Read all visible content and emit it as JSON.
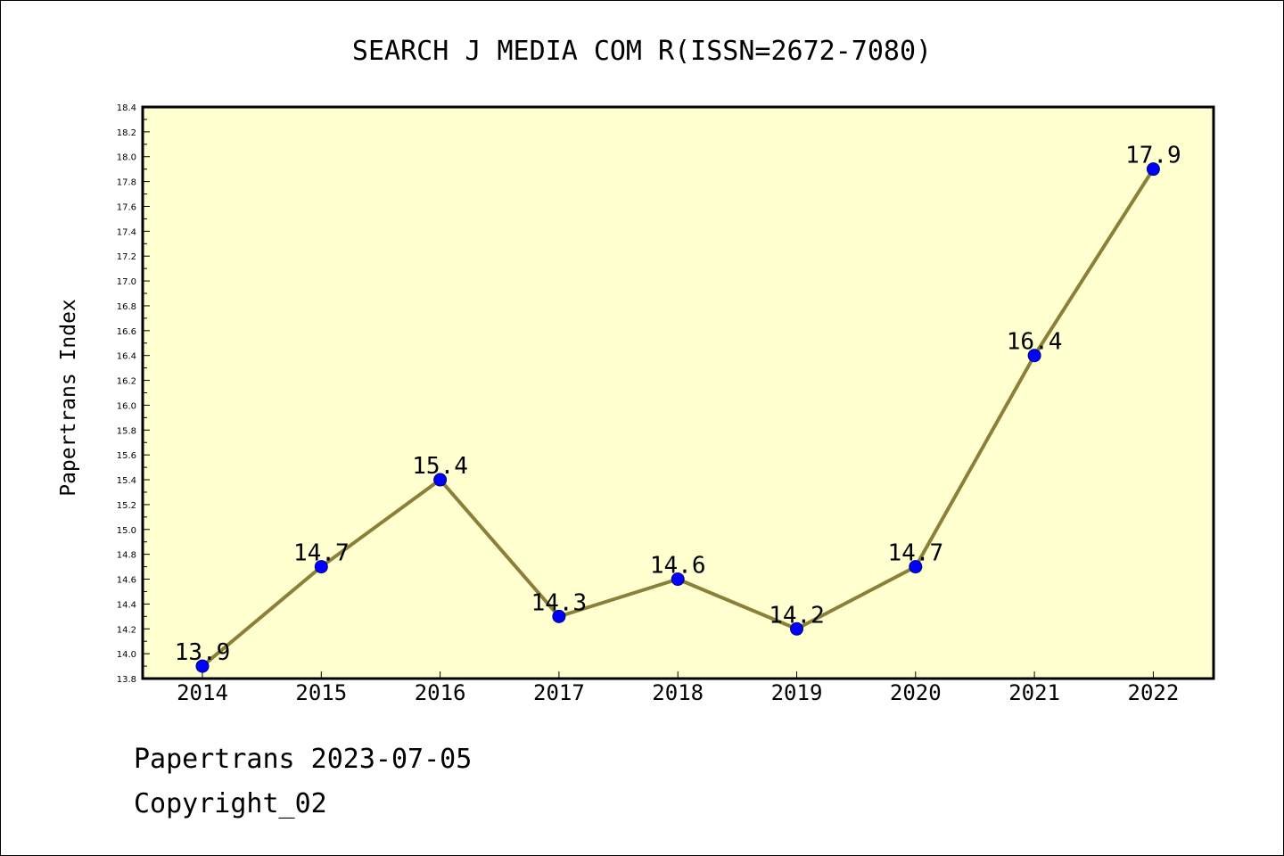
{
  "chart_data": {
    "type": "line",
    "title": "SEARCH J MEDIA COM R(ISSN=2672-7080)",
    "ylabel": "Papertrans Index",
    "xlabel": "",
    "categories": [
      "2014",
      "2015",
      "2016",
      "2017",
      "2018",
      "2019",
      "2020",
      "2021",
      "2022"
    ],
    "series": [
      {
        "values": [
          13.9,
          14.7,
          15.4,
          14.3,
          14.6,
          14.2,
          14.7,
          16.4,
          17.9
        ],
        "labels": [
          "13.9",
          "14.7",
          "15.4",
          "14.3",
          "14.6",
          "14.2",
          "14.7",
          "16.4",
          "17.9"
        ]
      }
    ],
    "ylim": [
      13.8,
      18.4
    ],
    "ytick_labels": [
      "13.8",
      "14.0",
      "14.2",
      "14.4",
      "14.6",
      "14.8",
      "15.0",
      "15.2",
      "15.4",
      "15.6",
      "15.8",
      "16.0",
      "16.2",
      "16.4",
      "16.6",
      "16.8",
      "17.0",
      "17.2",
      "17.4",
      "17.6",
      "17.8",
      "18.0",
      "18.2",
      "18.4"
    ],
    "grid": false,
    "legend": "none",
    "colors": {
      "plot_background": "#ffffd0",
      "line": "#8b8038",
      "marker_fill": "#0000ff",
      "marker_edge": "#000080",
      "axes": "#000000"
    }
  },
  "footer": {
    "date_line": "Papertrans 2023-07-05",
    "copyright_line": "Copyright_02"
  }
}
